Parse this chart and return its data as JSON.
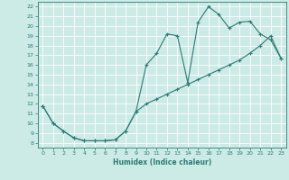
{
  "xlabel": "Humidex (Indice chaleur)",
  "bg_color": "#cceae6",
  "grid_color": "#ffffff",
  "line_color": "#2d7b73",
  "xlim": [
    -0.5,
    23.5
  ],
  "ylim": [
    7.5,
    22.5
  ],
  "xticks": [
    0,
    1,
    2,
    3,
    4,
    5,
    6,
    7,
    8,
    9,
    10,
    11,
    12,
    13,
    14,
    15,
    16,
    17,
    18,
    19,
    20,
    21,
    22,
    23
  ],
  "yticks": [
    8,
    9,
    10,
    11,
    12,
    13,
    14,
    15,
    16,
    17,
    18,
    19,
    20,
    21,
    22
  ],
  "line1_x": [
    0,
    1,
    2,
    3,
    4,
    5,
    6,
    7,
    8,
    9,
    10,
    11,
    12,
    13,
    14,
    15,
    16,
    17,
    18,
    19,
    20,
    21,
    22,
    23
  ],
  "line1_y": [
    11.8,
    10.0,
    9.2,
    8.5,
    8.2,
    8.2,
    8.2,
    8.3,
    9.2,
    11.2,
    16.0,
    17.2,
    19.2,
    19.0,
    14.2,
    20.4,
    22.0,
    21.2,
    19.8,
    20.4,
    20.5,
    19.2,
    18.6,
    16.7
  ],
  "line2_x": [
    0,
    1,
    2,
    3,
    4,
    5,
    6,
    7,
    8,
    9,
    10,
    11,
    12,
    13,
    14,
    15,
    16,
    17,
    18,
    19,
    20,
    21,
    22,
    23
  ],
  "line2_y": [
    11.8,
    10.0,
    9.2,
    8.5,
    8.2,
    8.2,
    8.2,
    8.3,
    9.2,
    11.2,
    12.0,
    12.5,
    13.0,
    13.5,
    14.0,
    14.5,
    15.0,
    15.5,
    16.0,
    16.5,
    17.2,
    18.0,
    19.0,
    16.7
  ],
  "xlabel_fontsize": 5.5,
  "tick_fontsize": 4.5,
  "linewidth": 0.8,
  "markersize": 2.2
}
